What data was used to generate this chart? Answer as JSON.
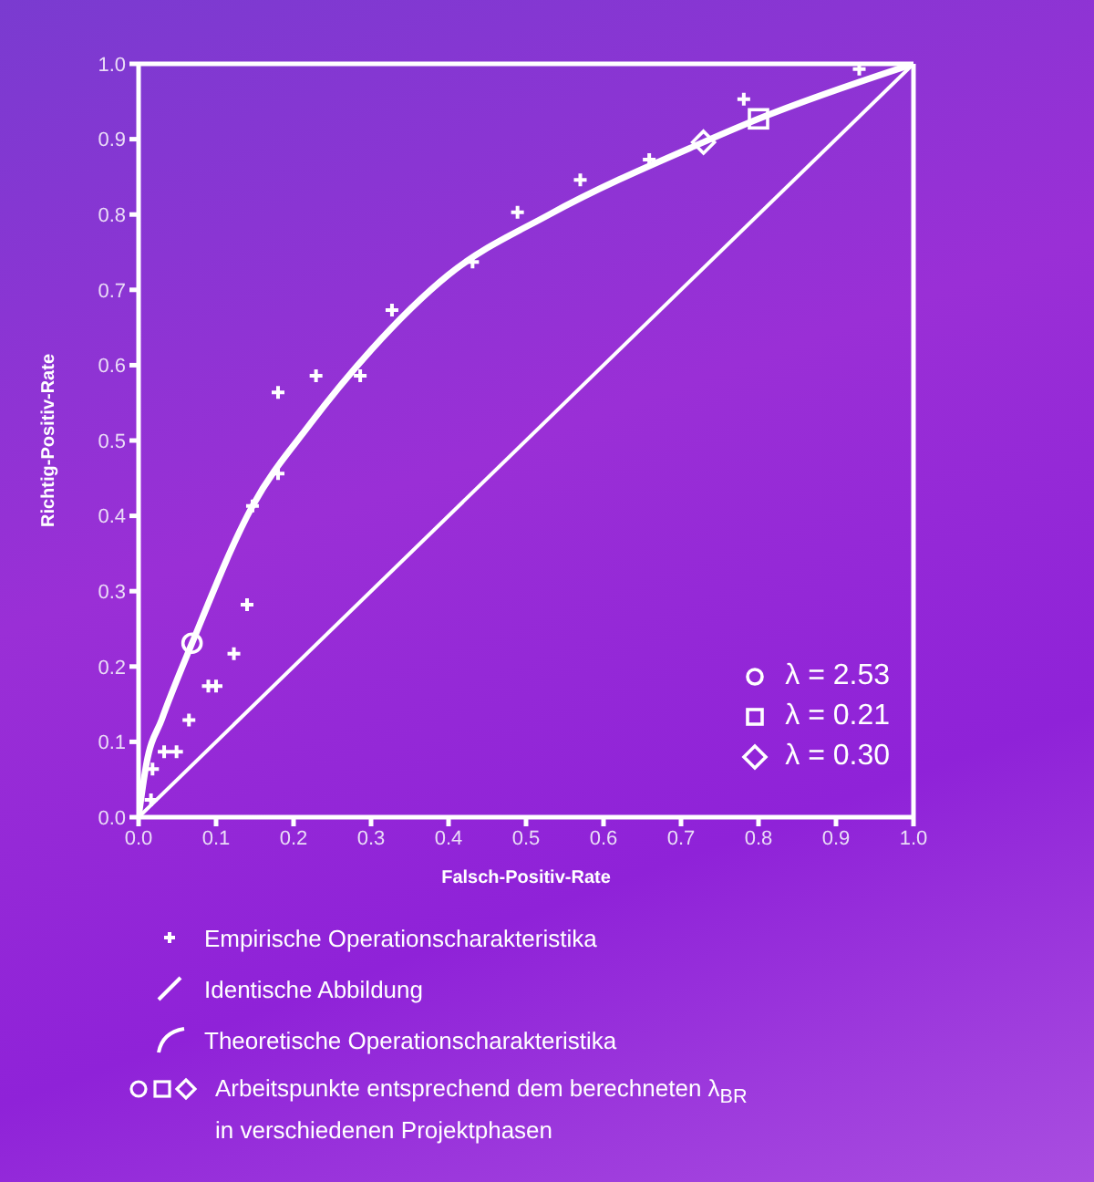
{
  "chart_data": {
    "type": "scatter",
    "xlabel": "Falsch-Positiv-Rate",
    "ylabel": "Richtig-Positiv-Rate",
    "xlim": [
      0,
      1
    ],
    "ylim": [
      0,
      1
    ],
    "xticks": [
      {
        "value": 0,
        "label": "0.0"
      },
      {
        "value": 0.1,
        "label": "0.1"
      },
      {
        "value": 0.2,
        "label": "0.2"
      },
      {
        "value": 0.3,
        "label": "0.3"
      },
      {
        "value": 0.4,
        "label": "0.4"
      },
      {
        "value": 0.5,
        "label": "0.5"
      },
      {
        "value": 0.6,
        "label": "0.6"
      },
      {
        "value": 0.7,
        "label": "0.7"
      },
      {
        "value": 0.8,
        "label": "0.8"
      },
      {
        "value": 0.9,
        "label": "0.9"
      },
      {
        "value": 1,
        "label": "1.0"
      }
    ],
    "yticks": [
      {
        "value": 0,
        "label": "0.0"
      },
      {
        "value": 0.1,
        "label": "0.1"
      },
      {
        "value": 0.2,
        "label": "0.2"
      },
      {
        "value": 0.3,
        "label": "0.3"
      },
      {
        "value": 0.4,
        "label": "0.4"
      },
      {
        "value": 0.5,
        "label": "0.5"
      },
      {
        "value": 0.6,
        "label": "0.6"
      },
      {
        "value": 0.7,
        "label": "0.7"
      },
      {
        "value": 0.8,
        "label": "0.8"
      },
      {
        "value": 0.9,
        "label": "0.9"
      },
      {
        "value": 1,
        "label": "1.0"
      }
    ],
    "legend": "bottom right",
    "series": [
      {
        "name": "Empirische Operationscharakteristika",
        "marker": "cross",
        "color": "#ffffff",
        "x": [
          0.016,
          0.018,
          0.033,
          0.049,
          0.065,
          0.09,
          0.1,
          0.123,
          0.14,
          0.147,
          0.18,
          0.18,
          0.229,
          0.286,
          0.327,
          0.431,
          0.489,
          0.57,
          0.659,
          0.781,
          0.93
        ],
        "values": [
          0.023,
          0.064,
          0.087,
          0.087,
          0.129,
          0.174,
          0.174,
          0.217,
          0.282,
          0.413,
          0.456,
          0.564,
          0.586,
          0.586,
          0.673,
          0.737,
          0.803,
          0.846,
          0.873,
          0.953,
          0.993
        ]
      },
      {
        "name": "Identische Abbildung",
        "type": "line",
        "marker": "none",
        "color": "#ffffff",
        "x": [
          0,
          1
        ],
        "values": [
          0,
          1
        ]
      },
      {
        "name": "Theoretische Operationscharakteristika",
        "type": "line",
        "marker": "none",
        "color": "#ffffff",
        "x": [
          0,
          0.01,
          0.03,
          0.069,
          0.147,
          0.22,
          0.3,
          0.4,
          0.53,
          0.729,
          0.8,
          1
        ],
        "values": [
          0,
          0.07,
          0.13,
          0.231,
          0.413,
          0.52,
          0.62,
          0.72,
          0.8,
          0.896,
          0.927,
          1
        ]
      },
      {
        "name": "λ = 2.53",
        "marker": "circle",
        "color": "#ffffff",
        "x": [
          0.069
        ],
        "values": [
          0.231
        ]
      },
      {
        "name": "λ = 0.21",
        "marker": "square",
        "color": "#ffffff",
        "x": [
          0.8
        ],
        "values": [
          0.927
        ]
      },
      {
        "name": "λ = 0.30",
        "marker": "diamond",
        "color": "#ffffff",
        "x": [
          0.729
        ],
        "values": [
          0.896
        ]
      }
    ],
    "annotations": [
      "Arbeitspunkte entsprechend dem berechneten λ$_{BR}$ in verschiedenen Projektphasen"
    ]
  }
}
